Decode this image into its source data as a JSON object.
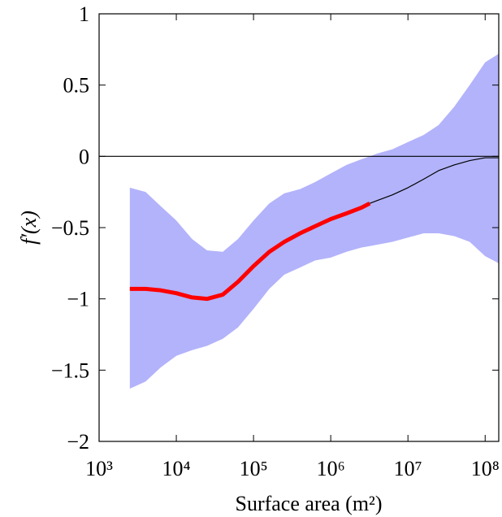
{
  "chart_data": {
    "type": "band_line",
    "x_label": "Surface area (m²)",
    "y_label": "f′(x)",
    "x_scale": "log",
    "xlim": [
      1000,
      150000000
    ],
    "ylim": [
      -2,
      1
    ],
    "xticks": [
      {
        "value": 1000,
        "label": "10³"
      },
      {
        "value": 10000,
        "label": "10⁴"
      },
      {
        "value": 100000,
        "label": "10⁵"
      },
      {
        "value": 1000000,
        "label": "10⁶"
      },
      {
        "value": 10000000,
        "label": "10⁷"
      },
      {
        "value": 100000000,
        "label": "10⁸"
      }
    ],
    "yticks": [
      {
        "value": -2,
        "label": "−2"
      },
      {
        "value": -1.5,
        "label": "−1.5"
      },
      {
        "value": -1,
        "label": "−1"
      },
      {
        "value": -0.5,
        "label": "−0.5"
      },
      0,
      0.5,
      1
    ],
    "reference_line": 0,
    "x": [
      2500,
      4000,
      6300,
      10000,
      16000,
      25000,
      40000,
      63000,
      100000,
      160000,
      250000,
      400000,
      630000,
      1000000,
      1600000,
      2500000,
      3200000,
      4000000,
      6300000,
      10000000,
      16000000,
      25000000,
      40000000,
      63000000,
      100000000,
      150000000
    ],
    "band": {
      "color": "#b3b3fb",
      "upper": [
        -0.22,
        -0.25,
        -0.35,
        -0.45,
        -0.58,
        -0.66,
        -0.67,
        -0.58,
        -0.45,
        -0.33,
        -0.26,
        -0.23,
        -0.18,
        -0.12,
        -0.06,
        -0.02,
        0.0,
        0.02,
        0.05,
        0.1,
        0.15,
        0.22,
        0.35,
        0.5,
        0.66,
        0.72
      ],
      "lower": [
        -1.63,
        -1.58,
        -1.48,
        -1.4,
        -1.36,
        -1.33,
        -1.28,
        -1.2,
        -1.07,
        -0.93,
        -0.83,
        -0.78,
        -0.73,
        -0.71,
        -0.67,
        -0.64,
        -0.63,
        -0.62,
        -0.6,
        -0.57,
        -0.54,
        -0.54,
        -0.56,
        -0.6,
        -0.7,
        -0.75
      ]
    },
    "series": [
      {
        "color": "#ff0000",
        "width": 5,
        "values": [
          -0.93,
          -0.93,
          -0.94,
          -0.96,
          -0.99,
          -1.0,
          -0.97,
          -0.88,
          -0.77,
          -0.67,
          -0.6,
          -0.54,
          -0.49,
          -0.44,
          -0.4,
          -0.36,
          -0.33,
          null,
          null,
          null,
          null,
          null,
          null,
          null,
          null,
          null
        ]
      },
      {
        "color": "#000000",
        "width": 1.2,
        "values": [
          null,
          null,
          null,
          null,
          null,
          null,
          null,
          null,
          null,
          null,
          null,
          null,
          null,
          null,
          null,
          null,
          -0.33,
          -0.31,
          -0.27,
          -0.22,
          -0.16,
          -0.1,
          -0.06,
          -0.03,
          -0.01,
          -0.01
        ]
      }
    ]
  }
}
